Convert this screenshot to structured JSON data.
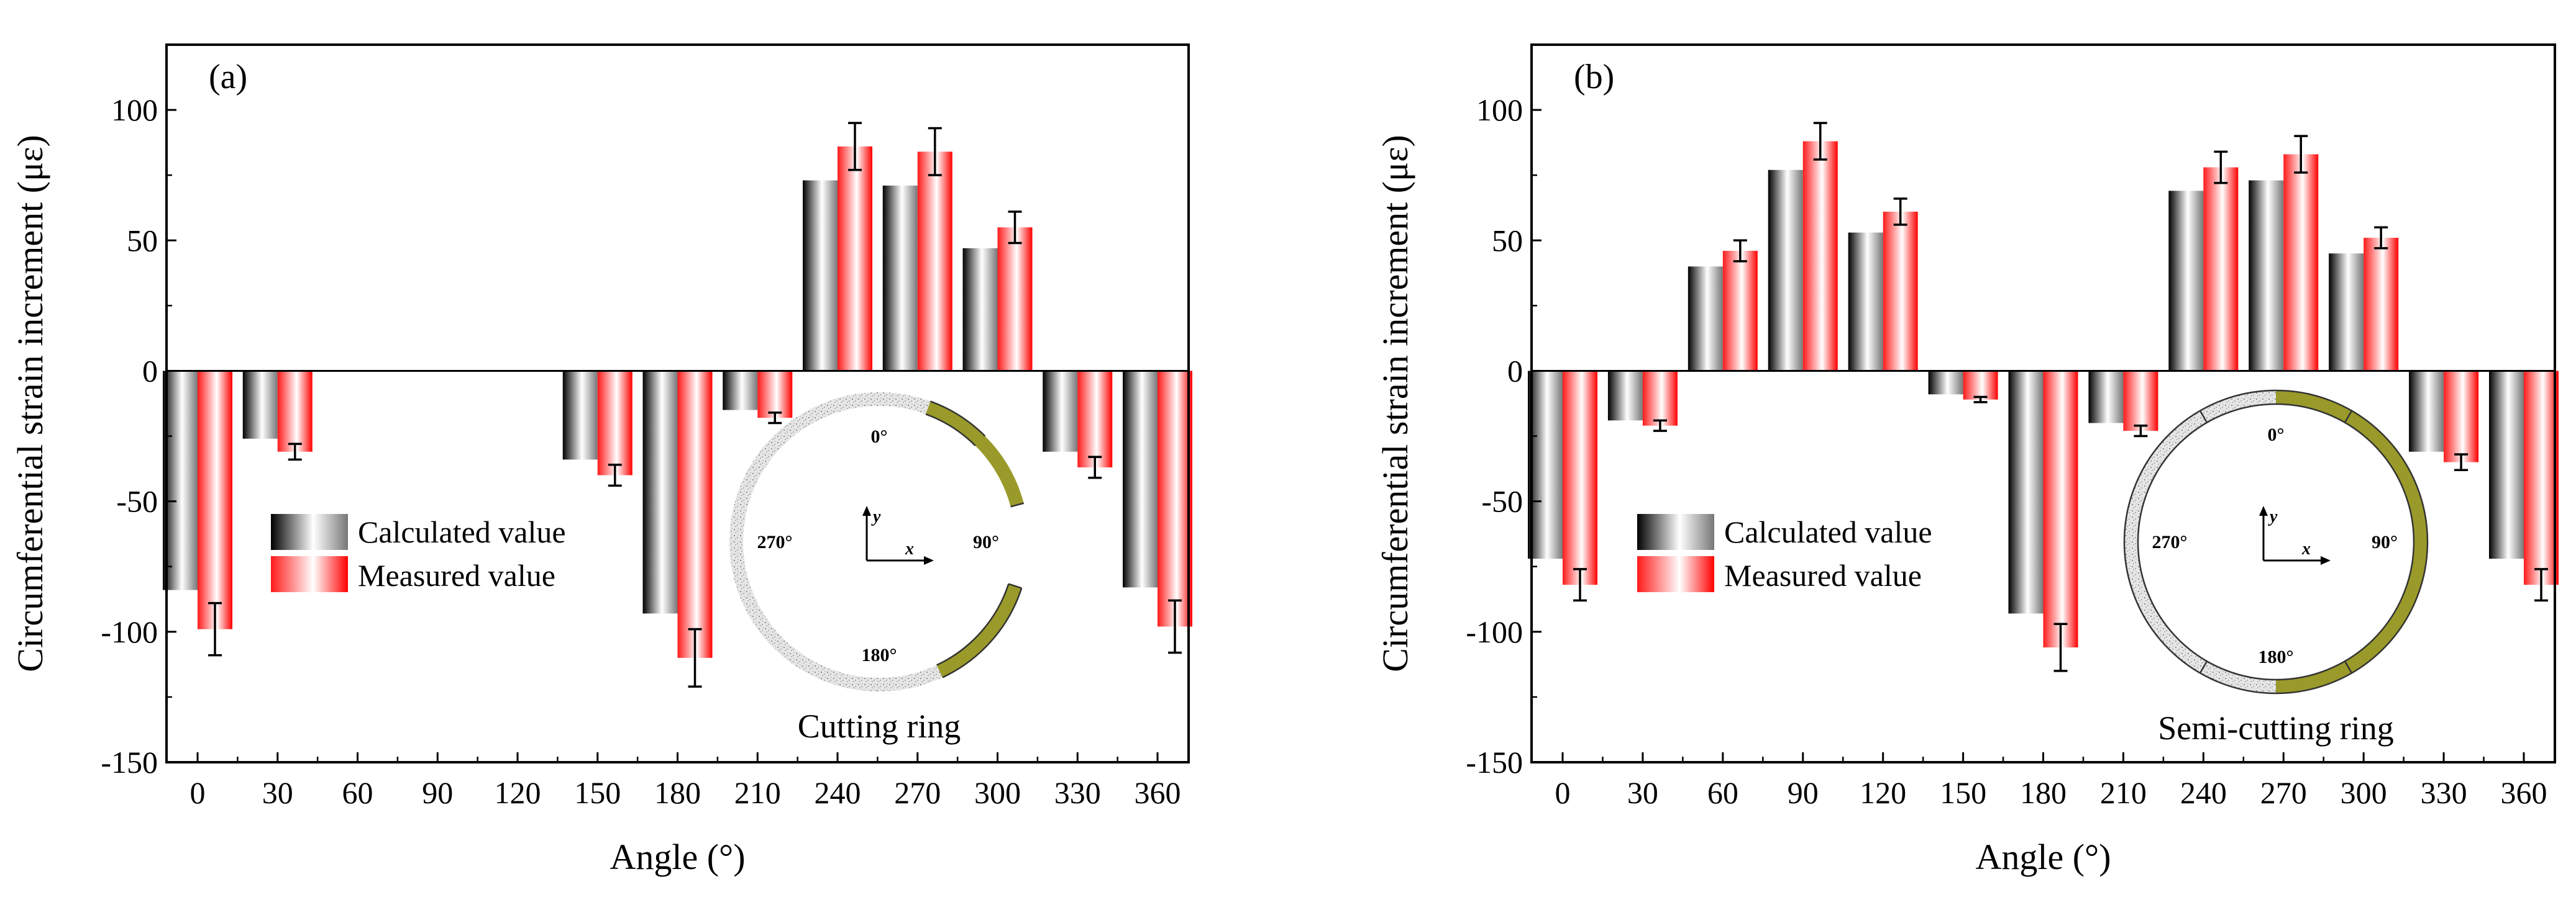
{
  "chart_data": [
    {
      "type": "bar",
      "panel_label": "(a)",
      "categories": [
        "0",
        "30",
        "60",
        "90",
        "120",
        "150",
        "180",
        "210",
        "240",
        "270",
        "300",
        "330",
        "360"
      ],
      "xlabel": "Angle (°)",
      "ylabel": "Circumferential strain increment (με)",
      "ylim": [
        -150,
        125
      ],
      "yticks": [
        "100",
        "50",
        "0",
        "-50",
        "-100",
        "-150"
      ],
      "series": [
        {
          "name": "Calculated value",
          "color": "#000000",
          "values": [
            -84,
            -26,
            null,
            null,
            null,
            -34,
            -93,
            -15,
            73,
            71,
            47,
            -31,
            -83
          ],
          "errors": null
        },
        {
          "name": "Measured value",
          "color": "#ff0000",
          "values": [
            -99,
            -31,
            null,
            null,
            null,
            -40,
            -110,
            -18,
            86,
            84,
            55,
            -37,
            -98
          ],
          "errors": [
            10,
            3,
            null,
            null,
            null,
            4,
            11,
            2,
            9,
            9,
            6,
            4,
            10
          ]
        }
      ],
      "legend": {
        "position": "lower-left",
        "entries": [
          "Calculated value",
          "Measured value"
        ]
      },
      "inset": {
        "caption": "Cutting ring",
        "angle_labels": [
          "0°",
          "90°",
          "180°",
          "270°"
        ],
        "axis_labels": [
          "x",
          "y"
        ],
        "gap": "cut at 90°",
        "highlight_color": "#9a9a2a"
      }
    },
    {
      "type": "bar",
      "panel_label": "(b)",
      "categories": [
        "0",
        "30",
        "60",
        "90",
        "120",
        "150",
        "180",
        "210",
        "240",
        "270",
        "300",
        "330",
        "360"
      ],
      "xlabel": "Angle (°)",
      "ylabel": "Circumferential strain increment (με)",
      "ylim": [
        -150,
        125
      ],
      "yticks": [
        "100",
        "50",
        "0",
        "-50",
        "-100",
        "-150"
      ],
      "series": [
        {
          "name": "Calculated value",
          "color": "#000000",
          "values": [
            -72,
            -19,
            40,
            77,
            53,
            -9,
            -93,
            -20,
            69,
            73,
            45,
            -31,
            -72
          ],
          "errors": null
        },
        {
          "name": "Measured value",
          "color": "#ff0000",
          "values": [
            -82,
            -21,
            46,
            88,
            61,
            -11,
            -106,
            -23,
            78,
            83,
            51,
            -35,
            -82
          ],
          "errors": [
            6,
            2,
            4,
            7,
            5,
            1,
            9,
            2,
            6,
            7,
            4,
            3,
            6
          ]
        }
      ],
      "legend": {
        "position": "center-left",
        "entries": [
          "Calculated value",
          "Measured value"
        ]
      },
      "inset": {
        "caption": "Semi-cutting ring",
        "angle_labels": [
          "0°",
          "90°",
          "180°",
          "270°"
        ],
        "axis_labels": [
          "x",
          "y"
        ],
        "gap": "none",
        "highlight_color": "#9a9a2a"
      }
    }
  ]
}
